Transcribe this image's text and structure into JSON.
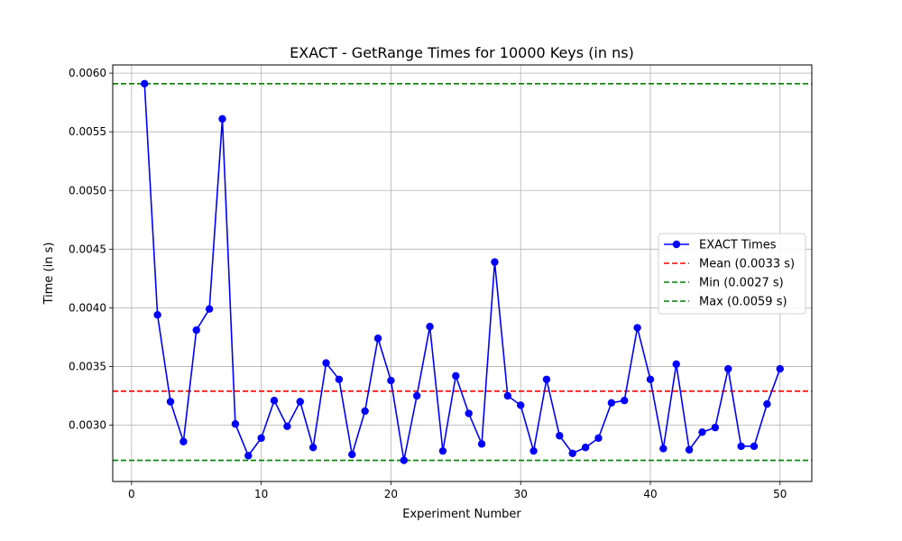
{
  "chart_data": {
    "type": "line",
    "title": "EXACT - GetRange Times for 10000 Keys (in ns)",
    "xlabel": "Experiment Number",
    "ylabel": "Time (in s)",
    "xlim": [
      -1.45,
      52.45
    ],
    "ylim": [
      0.00252,
      0.00607
    ],
    "xticks": [
      0,
      10,
      20,
      30,
      40,
      50
    ],
    "xtick_labels": [
      "0",
      "10",
      "20",
      "30",
      "40",
      "50"
    ],
    "yticks": [
      0.003,
      0.0035,
      0.004,
      0.0045,
      0.005,
      0.0055,
      0.006
    ],
    "ytick_labels": [
      "0.0030",
      "0.0035",
      "0.0040",
      "0.0045",
      "0.0050",
      "0.0055",
      "0.0060"
    ],
    "grid": true,
    "legend_position": "center-right",
    "series": [
      {
        "name": "EXACT Times",
        "color": "#0000ff",
        "marker": "circle",
        "x": [
          1,
          2,
          3,
          4,
          5,
          6,
          7,
          8,
          9,
          10,
          11,
          12,
          13,
          14,
          15,
          16,
          17,
          18,
          19,
          20,
          21,
          22,
          23,
          24,
          25,
          26,
          27,
          28,
          29,
          30,
          31,
          32,
          33,
          34,
          35,
          36,
          37,
          38,
          39,
          40,
          41,
          42,
          43,
          44,
          45,
          46,
          47,
          48,
          49,
          50
        ],
        "values": [
          0.00591,
          0.00394,
          0.0032,
          0.00286,
          0.00381,
          0.00399,
          0.00561,
          0.00301,
          0.00274,
          0.00289,
          0.00321,
          0.00299,
          0.0032,
          0.00281,
          0.00353,
          0.00339,
          0.00275,
          0.00312,
          0.00374,
          0.00338,
          0.0027,
          0.00325,
          0.00384,
          0.00278,
          0.00342,
          0.0031,
          0.00284,
          0.00439,
          0.00325,
          0.00317,
          0.00278,
          0.00339,
          0.00291,
          0.00276,
          0.00281,
          0.00289,
          0.00319,
          0.00321,
          0.00383,
          0.00339,
          0.0028,
          0.00352,
          0.00279,
          0.00294,
          0.00298,
          0.00348,
          0.00282,
          0.00282,
          0.00318,
          0.00348
        ]
      }
    ],
    "reference_lines": [
      {
        "name": "Mean (0.0033 s)",
        "value": 0.00329,
        "color": "#ff0000",
        "style": "dashed"
      },
      {
        "name": "Min (0.0027 s)",
        "value": 0.0027,
        "color": "#008000",
        "style": "dashed"
      },
      {
        "name": "Max (0.0059 s)",
        "value": 0.00591,
        "color": "#008000",
        "style": "dashed"
      }
    ]
  }
}
